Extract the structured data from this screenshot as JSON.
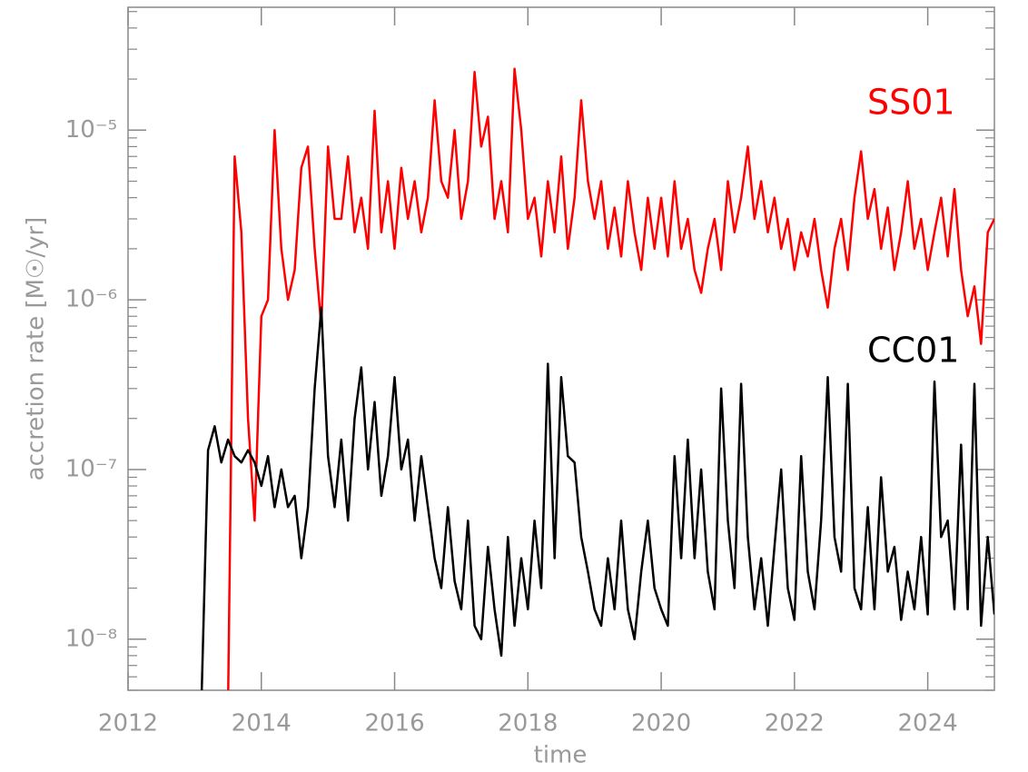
{
  "chart_data": {
    "type": "line",
    "xlabel": "time",
    "ylabel": "accretion rate [M☉/yr]",
    "log_y": true,
    "xlim": [
      2012,
      2025
    ],
    "xticks": [
      2012,
      2014,
      2016,
      2018,
      2020,
      2022,
      2024
    ],
    "ylim": [
      5e-09,
      5.3e-05
    ],
    "yticks": [
      {
        "value": 1e-08,
        "label": "10⁻⁸"
      },
      {
        "value": 1e-07,
        "label": "10⁻⁷"
      },
      {
        "value": 1e-06,
        "label": "10⁻⁶"
      },
      {
        "value": 1e-05,
        "label": "10⁻⁵"
      }
    ],
    "x": [
      2013.1,
      2013.2,
      2013.3,
      2013.4,
      2013.5,
      2013.6,
      2013.7,
      2013.8,
      2013.9,
      2014.0,
      2014.1,
      2014.2,
      2014.3,
      2014.4,
      2014.5,
      2014.6,
      2014.7,
      2014.8,
      2014.9,
      2015.0,
      2015.1,
      2015.2,
      2015.3,
      2015.4,
      2015.5,
      2015.6,
      2015.7,
      2015.8,
      2015.9,
      2016.0,
      2016.1,
      2016.2,
      2016.3,
      2016.4,
      2016.5,
      2016.6,
      2016.7,
      2016.8,
      2016.9,
      2017.0,
      2017.1,
      2017.2,
      2017.3,
      2017.4,
      2017.5,
      2017.6,
      2017.7,
      2017.8,
      2017.9,
      2018.0,
      2018.1,
      2018.2,
      2018.3,
      2018.4,
      2018.5,
      2018.6,
      2018.7,
      2018.8,
      2018.9,
      2019.0,
      2019.1,
      2019.2,
      2019.3,
      2019.4,
      2019.5,
      2019.6,
      2019.7,
      2019.8,
      2019.9,
      2020.0,
      2020.1,
      2020.2,
      2020.3,
      2020.4,
      2020.5,
      2020.6,
      2020.7,
      2020.8,
      2020.9,
      2021.0,
      2021.1,
      2021.2,
      2021.3,
      2021.4,
      2021.5,
      2021.6,
      2021.7,
      2021.8,
      2021.9,
      2022.0,
      2022.1,
      2022.2,
      2022.3,
      2022.4,
      2022.5,
      2022.6,
      2022.7,
      2022.8,
      2022.9,
      2023.0,
      2023.1,
      2023.2,
      2023.3,
      2023.4,
      2023.5,
      2023.6,
      2023.7,
      2023.8,
      2023.9,
      2024.0,
      2024.1,
      2024.2,
      2024.3,
      2024.4,
      2024.5,
      2024.6,
      2024.7,
      2024.8,
      2024.9,
      2025.0
    ],
    "series": [
      {
        "name": "SS01",
        "color": "#ff0000",
        "values": [
          null,
          null,
          null,
          null,
          4e-09,
          7e-06,
          2.5e-06,
          2e-07,
          5e-08,
          8e-07,
          1e-06,
          1e-05,
          2e-06,
          1e-06,
          1.5e-06,
          6e-06,
          8e-06,
          2e-06,
          7e-07,
          8e-06,
          3e-06,
          3e-06,
          7e-06,
          2.5e-06,
          4e-06,
          2e-06,
          1.3e-05,
          2.5e-06,
          5e-06,
          2e-06,
          6e-06,
          3e-06,
          5e-06,
          2.5e-06,
          4e-06,
          1.5e-05,
          5e-06,
          4e-06,
          1e-05,
          3e-06,
          5e-06,
          2.2e-05,
          8e-06,
          1.2e-05,
          3e-06,
          5e-06,
          2.5e-06,
          2.3e-05,
          1e-05,
          3e-06,
          4e-06,
          1.8e-06,
          5e-06,
          2.5e-06,
          7e-06,
          2e-06,
          4e-06,
          1.5e-05,
          5e-06,
          3e-06,
          5e-06,
          2e-06,
          3.5e-06,
          1.8e-06,
          5e-06,
          2.5e-06,
          1.5e-06,
          4e-06,
          2e-06,
          4e-06,
          1.8e-06,
          5e-06,
          2e-06,
          3e-06,
          1.5e-06,
          1.1e-06,
          2e-06,
          3e-06,
          1.5e-06,
          5e-06,
          2.5e-06,
          4e-06,
          8e-06,
          3e-06,
          5e-06,
          2.5e-06,
          4e-06,
          2e-06,
          3e-06,
          1.5e-06,
          2.5e-06,
          1.8e-06,
          3e-06,
          1.5e-06,
          9e-07,
          2e-06,
          3e-06,
          1.5e-06,
          4e-06,
          7.5e-06,
          3e-06,
          4.5e-06,
          2e-06,
          3.5e-06,
          1.5e-06,
          2.5e-06,
          5e-06,
          2e-06,
          3e-06,
          1.5e-06,
          2.5e-06,
          4e-06,
          1.8e-06,
          4.5e-06,
          1.5e-06,
          8e-07,
          1.2e-06,
          5.5e-07,
          2.5e-06,
          3e-06
        ]
      },
      {
        "name": "CC01",
        "color": "#000000",
        "values": [
          4e-09,
          1.3e-07,
          1.8e-07,
          1.1e-07,
          1.5e-07,
          1.2e-07,
          1.1e-07,
          1.3e-07,
          1.1e-07,
          8e-08,
          1.2e-07,
          6e-08,
          1e-07,
          6e-08,
          7e-08,
          3e-08,
          6e-08,
          3e-07,
          9e-07,
          1.2e-07,
          6e-08,
          1.5e-07,
          5e-08,
          2e-07,
          4e-07,
          1e-07,
          2.5e-07,
          7e-08,
          1.2e-07,
          3.5e-07,
          1e-07,
          1.5e-07,
          5e-08,
          1.2e-07,
          6e-08,
          3e-08,
          2e-08,
          6e-08,
          2.2e-08,
          1.5e-08,
          5e-08,
          1.2e-08,
          1e-08,
          3.5e-08,
          1.5e-08,
          8e-09,
          4e-08,
          1.2e-08,
          3e-08,
          1.5e-08,
          5e-08,
          2e-08,
          4.2e-07,
          3e-08,
          3.5e-07,
          1.2e-07,
          1.1e-07,
          4e-08,
          2.5e-08,
          1.5e-08,
          1.2e-08,
          3e-08,
          1.5e-08,
          5e-08,
          1.5e-08,
          1e-08,
          2.5e-08,
          5e-08,
          2e-08,
          1.5e-08,
          1.2e-08,
          1.2e-07,
          3e-08,
          1.5e-07,
          3e-08,
          1e-07,
          2.5e-08,
          1.5e-08,
          3e-07,
          5e-08,
          2e-08,
          3.2e-07,
          4e-08,
          1.5e-08,
          3e-08,
          1.2e-08,
          3.5e-08,
          1e-07,
          2e-08,
          1.3e-08,
          1.2e-07,
          2.5e-08,
          1.5e-08,
          5e-08,
          3.5e-07,
          4e-08,
          2.5e-08,
          3.2e-07,
          2e-08,
          1.5e-08,
          6e-08,
          1.5e-08,
          9e-08,
          2.5e-08,
          3.5e-08,
          1.3e-08,
          2.5e-08,
          1.5e-08,
          4e-08,
          1.4e-08,
          3.3e-07,
          4e-08,
          5e-08,
          1.5e-08,
          1.4e-07,
          1.5e-08,
          3.2e-07,
          1.2e-08,
          4e-08,
          1.4e-08
        ]
      }
    ]
  }
}
